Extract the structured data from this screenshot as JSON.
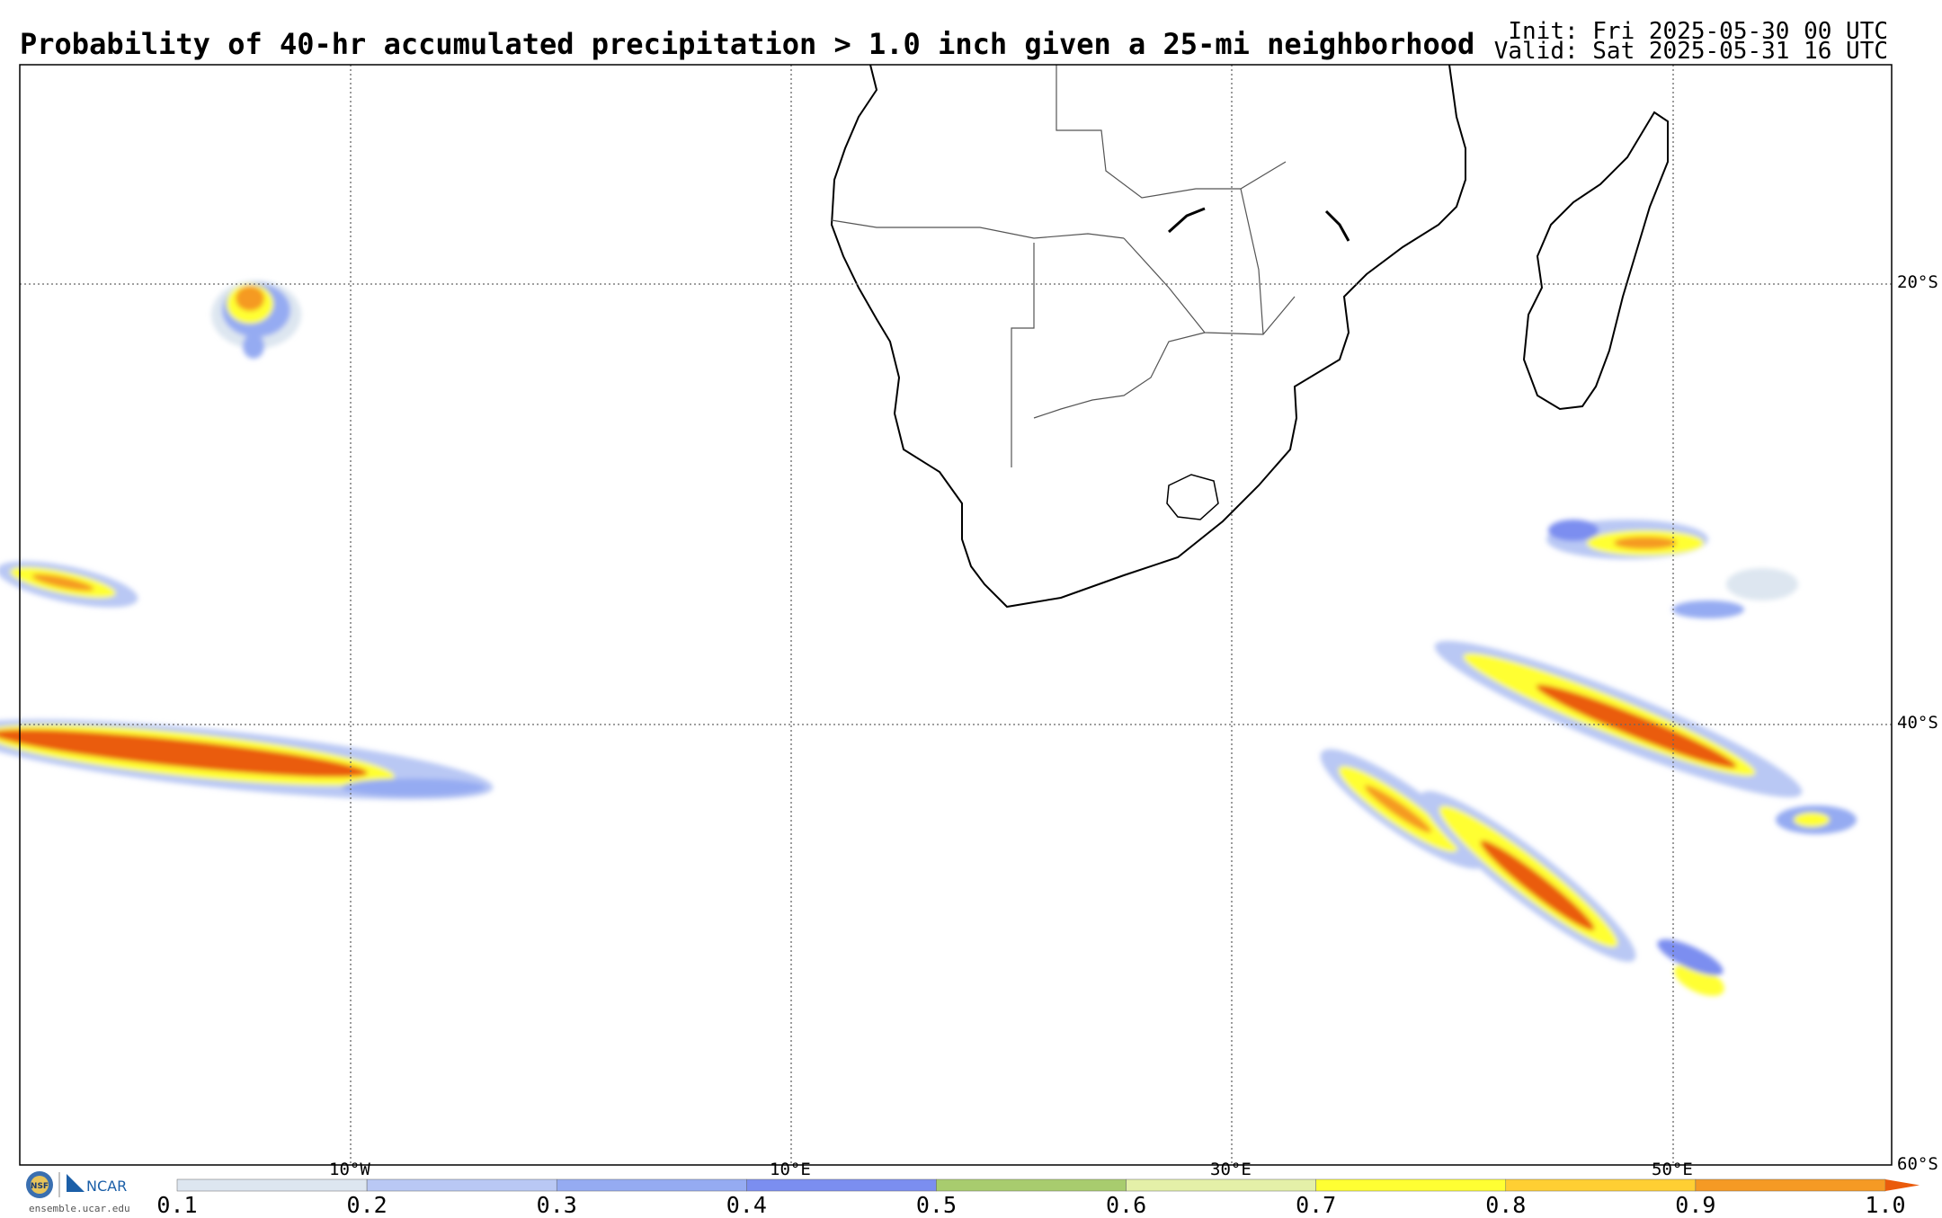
{
  "header": {
    "title": "Probability of 40-hr accumulated precipitation > 1.0 inch given a 25-mi neighborhood",
    "init": "Init: Fri 2025-05-30 00 UTC",
    "valid": "Valid: Sat 2025-05-31 16 UTC"
  },
  "map": {
    "latitude_labels": [
      "20°S",
      "40°S",
      "60°S"
    ],
    "longitude_labels": [
      "10°W",
      "10°E",
      "30°E",
      "50°E"
    ]
  },
  "colorbar": {
    "ticks": [
      "0.1",
      "0.2",
      "0.3",
      "0.4",
      "0.5",
      "0.6",
      "0.7",
      "0.8",
      "0.9",
      "1.0"
    ],
    "colors": [
      "#dde6f0",
      "#b9c8f4",
      "#95abf2",
      "#7b8ef0",
      "#a8cc6e",
      "#e4f0a8",
      "#ffff33",
      "#ffcf33",
      "#f59a24"
    ],
    "extend_color": "#ea5b0c"
  },
  "footer": {
    "logo_text": "NSF NCAR",
    "website": "ensemble.ucar.edu"
  }
}
